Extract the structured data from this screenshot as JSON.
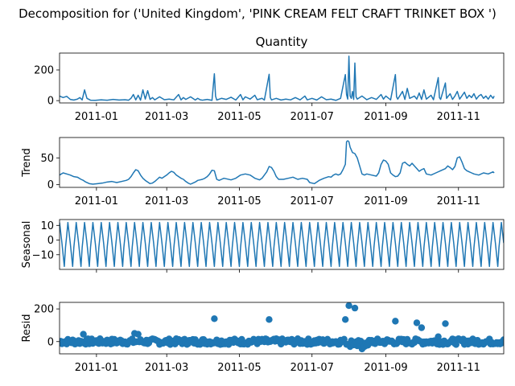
{
  "chart_data": {
    "type": "line",
    "suptitle": "Decomposition for ('United Kingdom', 'PINK CREAM FELT CRAFT TRINKET BOX ')",
    "x_range": [
      "2010-12-01",
      "2011-12-09"
    ],
    "x_ticks": [
      "2011-01",
      "2011-03",
      "2011-05",
      "2011-07",
      "2011-09",
      "2011-11"
    ],
    "series_color": "#1f77b4",
    "panels": [
      {
        "id": "observed",
        "type": "line",
        "title": "Quantity",
        "ylabel": "",
        "yticks": [
          "0",
          "200"
        ],
        "ylim": [
          -15,
          310
        ],
        "points": [
          [
            0,
            30
          ],
          [
            3,
            20
          ],
          [
            6,
            28
          ],
          [
            9,
            8
          ],
          [
            12,
            4
          ],
          [
            15,
            10
          ],
          [
            17,
            20
          ],
          [
            19,
            5
          ],
          [
            21,
            70
          ],
          [
            23,
            15
          ],
          [
            26,
            3
          ],
          [
            30,
            2
          ],
          [
            35,
            5
          ],
          [
            40,
            3
          ],
          [
            45,
            8
          ],
          [
            50,
            4
          ],
          [
            55,
            6
          ],
          [
            58,
            3
          ],
          [
            60,
            15
          ],
          [
            62,
            40
          ],
          [
            64,
            5
          ],
          [
            66,
            35
          ],
          [
            68,
            3
          ],
          [
            70,
            70
          ],
          [
            72,
            10
          ],
          [
            74,
            65
          ],
          [
            76,
            8
          ],
          [
            78,
            20
          ],
          [
            80,
            5
          ],
          [
            84,
            25
          ],
          [
            88,
            6
          ],
          [
            92,
            10
          ],
          [
            96,
            5
          ],
          [
            100,
            40
          ],
          [
            102,
            5
          ],
          [
            104,
            20
          ],
          [
            106,
            8
          ],
          [
            110,
            25
          ],
          [
            114,
            4
          ],
          [
            116,
            15
          ],
          [
            118,
            6
          ],
          [
            120,
            3
          ],
          [
            124,
            8
          ],
          [
            128,
            2
          ],
          [
            130,
            175
          ],
          [
            131,
            30
          ],
          [
            132,
            4
          ],
          [
            136,
            15
          ],
          [
            140,
            8
          ],
          [
            144,
            22
          ],
          [
            148,
            4
          ],
          [
            152,
            40
          ],
          [
            154,
            5
          ],
          [
            156,
            25
          ],
          [
            160,
            10
          ],
          [
            164,
            35
          ],
          [
            166,
            6
          ],
          [
            170,
            15
          ],
          [
            172,
            4
          ],
          [
            176,
            172
          ],
          [
            177,
            20
          ],
          [
            178,
            5
          ],
          [
            182,
            15
          ],
          [
            186,
            4
          ],
          [
            190,
            10
          ],
          [
            194,
            5
          ],
          [
            198,
            20
          ],
          [
            202,
            5
          ],
          [
            206,
            30
          ],
          [
            208,
            5
          ],
          [
            212,
            15
          ],
          [
            216,
            4
          ],
          [
            220,
            25
          ],
          [
            224,
            6
          ],
          [
            228,
            10
          ],
          [
            232,
            2
          ],
          [
            236,
            15
          ],
          [
            240,
            170
          ],
          [
            241,
            40
          ],
          [
            242,
            10
          ],
          [
            243,
            290
          ],
          [
            244,
            30
          ],
          [
            245,
            15
          ],
          [
            246,
            60
          ],
          [
            247,
            8
          ],
          [
            248,
            245
          ],
          [
            249,
            25
          ],
          [
            250,
            10
          ],
          [
            254,
            30
          ],
          [
            258,
            6
          ],
          [
            262,
            20
          ],
          [
            266,
            8
          ],
          [
            270,
            40
          ],
          [
            272,
            10
          ],
          [
            274,
            30
          ],
          [
            278,
            5
          ],
          [
            282,
            170
          ],
          [
            283,
            25
          ],
          [
            284,
            10
          ],
          [
            288,
            60
          ],
          [
            290,
            8
          ],
          [
            292,
            80
          ],
          [
            294,
            15
          ],
          [
            298,
            30
          ],
          [
            300,
            10
          ],
          [
            302,
            50
          ],
          [
            304,
            8
          ],
          [
            306,
            70
          ],
          [
            308,
            10
          ],
          [
            312,
            35
          ],
          [
            314,
            6
          ],
          [
            318,
            150
          ],
          [
            319,
            20
          ],
          [
            320,
            8
          ],
          [
            324,
            115
          ],
          [
            325,
            15
          ],
          [
            328,
            45
          ],
          [
            330,
            8
          ],
          [
            332,
            30
          ],
          [
            334,
            60
          ],
          [
            336,
            10
          ],
          [
            340,
            55
          ],
          [
            342,
            15
          ],
          [
            344,
            35
          ],
          [
            346,
            20
          ],
          [
            348,
            45
          ],
          [
            350,
            10
          ],
          [
            352,
            30
          ],
          [
            354,
            40
          ],
          [
            356,
            15
          ],
          [
            358,
            30
          ],
          [
            360,
            10
          ],
          [
            362,
            35
          ],
          [
            364,
            15
          ],
          [
            365,
            30
          ]
        ]
      },
      {
        "id": "trend",
        "type": "line",
        "title": "",
        "ylabel": "Trend",
        "yticks": [
          "0",
          "50"
        ],
        "ylim": [
          -5,
          88
        ],
        "points": [
          [
            0,
            18
          ],
          [
            3,
            22
          ],
          [
            6,
            20
          ],
          [
            9,
            18
          ],
          [
            12,
            15
          ],
          [
            15,
            14
          ],
          [
            18,
            10
          ],
          [
            20,
            8
          ],
          [
            22,
            5
          ],
          [
            25,
            2
          ],
          [
            28,
            1
          ],
          [
            32,
            2
          ],
          [
            36,
            3
          ],
          [
            40,
            5
          ],
          [
            44,
            6
          ],
          [
            48,
            4
          ],
          [
            52,
            6
          ],
          [
            56,
            8
          ],
          [
            58,
            10
          ],
          [
            60,
            15
          ],
          [
            62,
            22
          ],
          [
            64,
            28
          ],
          [
            66,
            26
          ],
          [
            68,
            18
          ],
          [
            70,
            12
          ],
          [
            72,
            8
          ],
          [
            74,
            5
          ],
          [
            76,
            2
          ],
          [
            78,
            3
          ],
          [
            80,
            6
          ],
          [
            82,
            10
          ],
          [
            84,
            14
          ],
          [
            86,
            12
          ],
          [
            88,
            15
          ],
          [
            90,
            18
          ],
          [
            92,
            22
          ],
          [
            94,
            25
          ],
          [
            96,
            23
          ],
          [
            98,
            18
          ],
          [
            100,
            15
          ],
          [
            102,
            12
          ],
          [
            104,
            10
          ],
          [
            106,
            6
          ],
          [
            108,
            3
          ],
          [
            110,
            1
          ],
          [
            112,
            3
          ],
          [
            114,
            5
          ],
          [
            116,
            8
          ],
          [
            118,
            9
          ],
          [
            120,
            10
          ],
          [
            122,
            12
          ],
          [
            124,
            15
          ],
          [
            126,
            20
          ],
          [
            128,
            27
          ],
          [
            130,
            26
          ],
          [
            132,
            10
          ],
          [
            134,
            8
          ],
          [
            136,
            10
          ],
          [
            138,
            12
          ],
          [
            140,
            11
          ],
          [
            144,
            9
          ],
          [
            148,
            12
          ],
          [
            152,
            18
          ],
          [
            156,
            20
          ],
          [
            160,
            18
          ],
          [
            164,
            12
          ],
          [
            168,
            9
          ],
          [
            170,
            12
          ],
          [
            172,
            18
          ],
          [
            174,
            24
          ],
          [
            176,
            34
          ],
          [
            178,
            32
          ],
          [
            180,
            25
          ],
          [
            182,
            15
          ],
          [
            184,
            10
          ],
          [
            188,
            10
          ],
          [
            192,
            12
          ],
          [
            196,
            14
          ],
          [
            200,
            10
          ],
          [
            204,
            12
          ],
          [
            208,
            10
          ],
          [
            210,
            4
          ],
          [
            214,
            2
          ],
          [
            218,
            8
          ],
          [
            222,
            12
          ],
          [
            226,
            15
          ],
          [
            228,
            14
          ],
          [
            230,
            18
          ],
          [
            232,
            20
          ],
          [
            234,
            18
          ],
          [
            236,
            20
          ],
          [
            238,
            28
          ],
          [
            240,
            38
          ],
          [
            241,
            80
          ],
          [
            242,
            82
          ],
          [
            243,
            80
          ],
          [
            244,
            70
          ],
          [
            246,
            60
          ],
          [
            248,
            58
          ],
          [
            250,
            50
          ],
          [
            252,
            35
          ],
          [
            254,
            20
          ],
          [
            256,
            18
          ],
          [
            258,
            20
          ],
          [
            262,
            18
          ],
          [
            266,
            16
          ],
          [
            268,
            22
          ],
          [
            270,
            38
          ],
          [
            272,
            46
          ],
          [
            274,
            44
          ],
          [
            276,
            38
          ],
          [
            278,
            22
          ],
          [
            280,
            18
          ],
          [
            282,
            15
          ],
          [
            284,
            16
          ],
          [
            286,
            22
          ],
          [
            288,
            40
          ],
          [
            290,
            42
          ],
          [
            292,
            38
          ],
          [
            294,
            35
          ],
          [
            296,
            40
          ],
          [
            298,
            35
          ],
          [
            300,
            30
          ],
          [
            302,
            25
          ],
          [
            304,
            28
          ],
          [
            306,
            30
          ],
          [
            308,
            20
          ],
          [
            312,
            18
          ],
          [
            316,
            22
          ],
          [
            320,
            26
          ],
          [
            324,
            30
          ],
          [
            326,
            35
          ],
          [
            328,
            32
          ],
          [
            330,
            28
          ],
          [
            332,
            34
          ],
          [
            334,
            50
          ],
          [
            336,
            52
          ],
          [
            338,
            42
          ],
          [
            340,
            30
          ],
          [
            342,
            26
          ],
          [
            344,
            24
          ],
          [
            346,
            22
          ],
          [
            348,
            20
          ],
          [
            352,
            18
          ],
          [
            356,
            22
          ],
          [
            360,
            20
          ],
          [
            364,
            24
          ],
          [
            365,
            22
          ]
        ]
      },
      {
        "id": "seasonal",
        "type": "line",
        "title": "",
        "ylabel": "Seasonal",
        "yticks": [
          "10",
          "0",
          "−10"
        ],
        "yticks_values": [
          10,
          0,
          -10
        ],
        "ylim": [
          -20,
          14
        ],
        "period_days": 7,
        "pattern": [
          12,
          5,
          -2,
          -10,
          -18,
          -5,
          3
        ]
      },
      {
        "id": "resid",
        "type": "scatter",
        "title": "",
        "ylabel": "Resid",
        "yticks": [
          "0",
          "200"
        ],
        "ylim": [
          -75,
          240
        ],
        "outliers": [
          [
            20,
            45
          ],
          [
            63,
            50
          ],
          [
            66,
            45
          ],
          [
            130,
            140
          ],
          [
            176,
            135
          ],
          [
            240,
            135
          ],
          [
            243,
            220
          ],
          [
            248,
            205
          ],
          [
            254,
            -45
          ],
          [
            282,
            125
          ],
          [
            300,
            115
          ],
          [
            304,
            85
          ],
          [
            318,
            30
          ],
          [
            324,
            110
          ]
        ]
      }
    ]
  }
}
